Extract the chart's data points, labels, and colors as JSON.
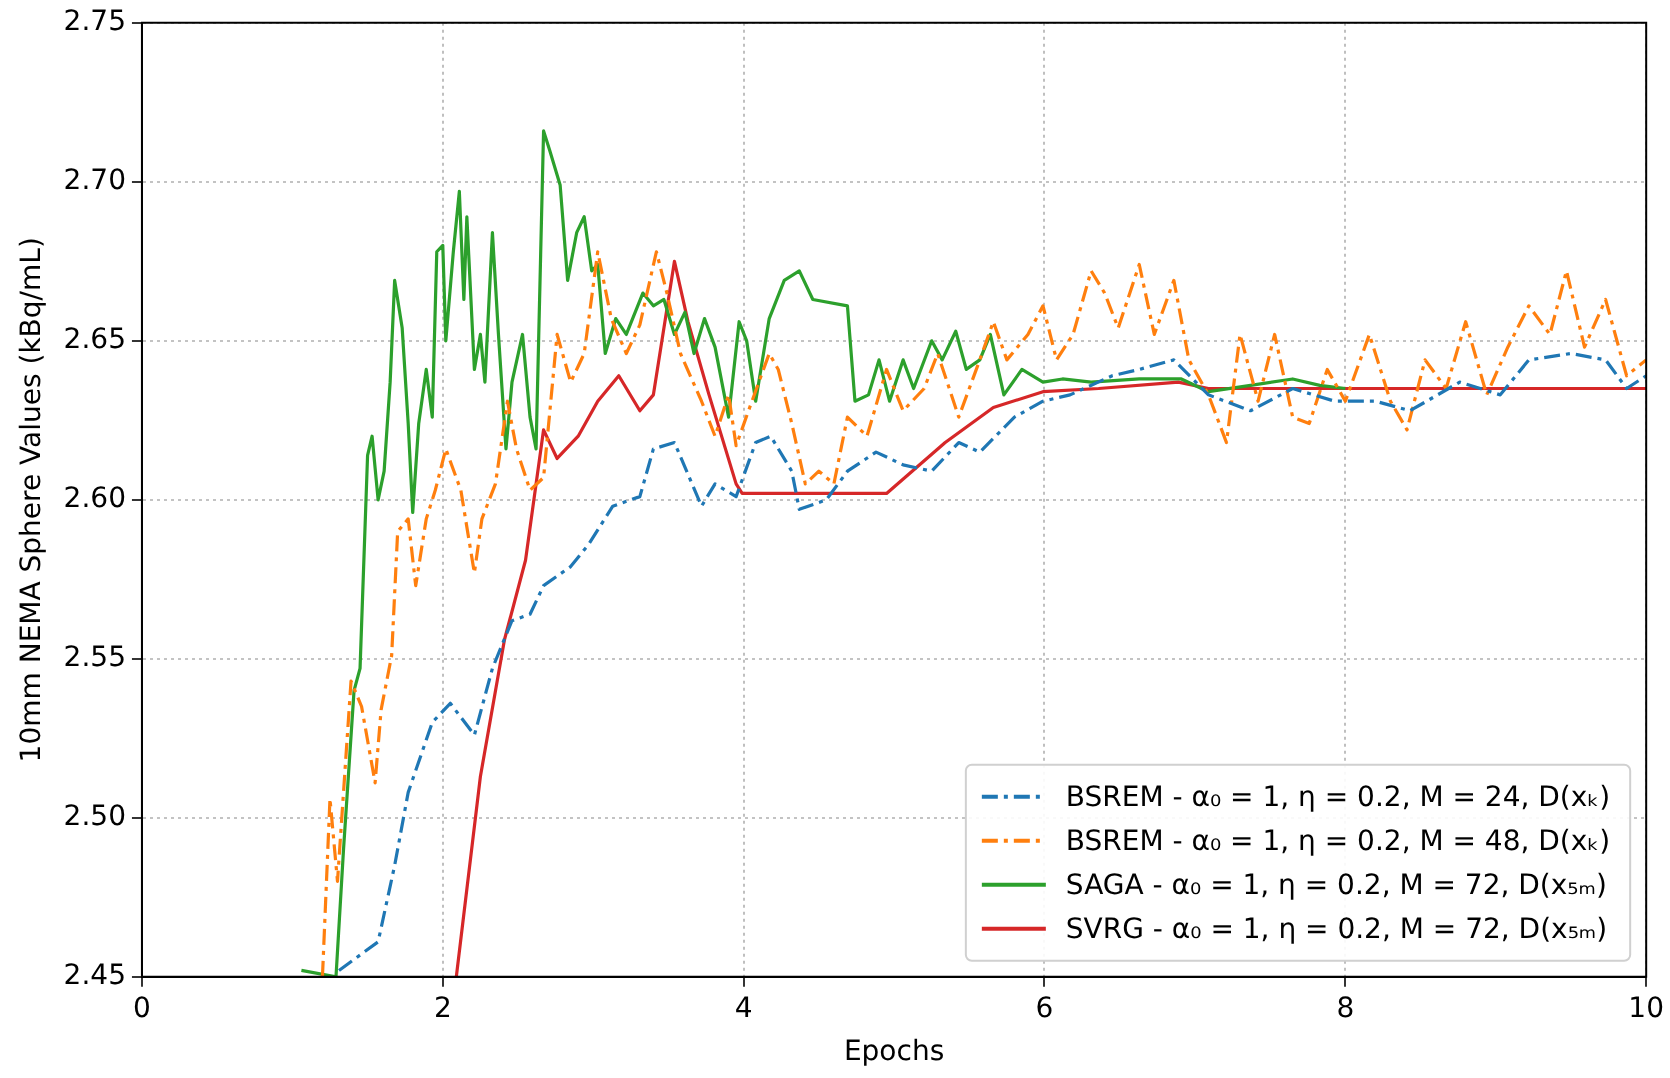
{
  "chart_data": {
    "type": "line",
    "xlabel": "Epochs",
    "ylabel": "10mm NEMA Sphere Values (kBq/mL)",
    "xlim": [
      0,
      10
    ],
    "xticks": [
      0,
      2,
      4,
      6,
      8,
      10
    ],
    "ylim": [
      2.45,
      2.75
    ],
    "yticks": [
      2.45,
      {
        "value": 2.5,
        "label": "2.50"
      },
      2.55,
      {
        "value": 2.6,
        "label": "2.60"
      },
      2.65,
      {
        "value": 2.7,
        "label": "2.70"
      },
      2.75
    ],
    "grid": true,
    "legend": "bottom right",
    "marker": "none",
    "series": [
      {
        "name": "BSREM - α₀ = 1, η = 0.2, M = 24, D(xₖ)",
        "color": "#1f77b4",
        "line_style": "dashed",
        "x": [
          1.31,
          1.57,
          1.68,
          1.77,
          1.93,
          2.05,
          2.21,
          2.33,
          2.46,
          2.58,
          2.67,
          2.85,
          2.97,
          3.13,
          3.31,
          3.4,
          3.54,
          3.72,
          3.81,
          3.95,
          4.08,
          4.18,
          4.32,
          4.37,
          4.55,
          4.69,
          4.88,
          5.06,
          5.25,
          5.43,
          5.57,
          5.8,
          5.99,
          6.17,
          6.45,
          6.63,
          6.86,
          7.09,
          7.37,
          7.65,
          7.93,
          8.2,
          8.43,
          8.76,
          9.03,
          9.22,
          9.5,
          9.73,
          9.87,
          10.0
        ],
        "values": [
          2.452,
          2.461,
          2.485,
          2.508,
          2.53,
          2.536,
          2.526,
          2.547,
          2.562,
          2.564,
          2.573,
          2.579,
          2.586,
          2.598,
          2.601,
          2.616,
          2.618,
          2.598,
          2.605,
          2.601,
          2.618,
          2.62,
          2.609,
          2.597,
          2.6,
          2.609,
          2.615,
          2.611,
          2.609,
          2.618,
          2.615,
          2.626,
          2.631,
          2.633,
          2.639,
          2.641,
          2.644,
          2.633,
          2.628,
          2.635,
          2.631,
          2.631,
          2.628,
          2.637,
          2.633,
          2.644,
          2.646,
          2.644,
          2.635,
          2.639
        ]
      },
      {
        "name": "BSREM - α₀ = 1, η = 0.2, M = 48, D(xₖ)",
        "color": "#ff7f0e",
        "line_style": "dashed",
        "x": [
          1.2,
          1.25,
          1.3,
          1.39,
          1.46,
          1.55,
          1.59,
          1.66,
          1.7,
          1.77,
          1.82,
          1.89,
          1.95,
          2.02,
          2.12,
          2.21,
          2.26,
          2.35,
          2.43,
          2.49,
          2.58,
          2.67,
          2.76,
          2.85,
          2.94,
          3.03,
          3.12,
          3.22,
          3.31,
          3.42,
          3.49,
          3.58,
          3.72,
          3.81,
          3.9,
          3.95,
          4.04,
          4.17,
          4.23,
          4.32,
          4.41,
          4.5,
          4.6,
          4.69,
          4.82,
          4.95,
          5.06,
          5.2,
          5.29,
          5.43,
          5.57,
          5.66,
          5.75,
          5.89,
          5.99,
          6.08,
          6.19,
          6.31,
          6.4,
          6.49,
          6.63,
          6.73,
          6.86,
          6.96,
          7.09,
          7.21,
          7.3,
          7.42,
          7.53,
          7.65,
          7.76,
          7.88,
          8.0,
          8.16,
          8.3,
          8.41,
          8.53,
          8.67,
          8.8,
          8.94,
          9.08,
          9.22,
          9.36,
          9.47,
          9.59,
          9.73,
          9.87,
          10.0
        ],
        "values": [
          2.45,
          2.506,
          2.48,
          2.543,
          2.535,
          2.511,
          2.534,
          2.551,
          2.59,
          2.594,
          2.573,
          2.594,
          2.603,
          2.616,
          2.603,
          2.577,
          2.594,
          2.605,
          2.631,
          2.616,
          2.603,
          2.607,
          2.652,
          2.637,
          2.646,
          2.678,
          2.657,
          2.646,
          2.655,
          2.678,
          2.665,
          2.646,
          2.631,
          2.62,
          2.633,
          2.617,
          2.629,
          2.646,
          2.641,
          2.624,
          2.605,
          2.609,
          2.605,
          2.626,
          2.62,
          2.641,
          2.628,
          2.635,
          2.646,
          2.626,
          2.644,
          2.656,
          2.644,
          2.652,
          2.661,
          2.644,
          2.652,
          2.672,
          2.665,
          2.654,
          2.674,
          2.652,
          2.669,
          2.644,
          2.633,
          2.618,
          2.652,
          2.631,
          2.652,
          2.626,
          2.624,
          2.641,
          2.631,
          2.652,
          2.631,
          2.622,
          2.644,
          2.635,
          2.656,
          2.633,
          2.648,
          2.661,
          2.652,
          2.672,
          2.648,
          2.663,
          2.639,
          2.644
        ]
      },
      {
        "name": "SAGA - α₀ = 1, η = 0.2, M = 72, D(x₅ₘ)",
        "color": "#2ca02c",
        "line_style": "solid",
        "x": [
          1.06,
          1.29,
          1.34,
          1.41,
          1.45,
          1.5,
          1.53,
          1.57,
          1.61,
          1.65,
          1.68,
          1.73,
          1.77,
          1.8,
          1.84,
          1.89,
          1.93,
          1.96,
          2.0,
          2.02,
          2.07,
          2.11,
          2.14,
          2.16,
          2.21,
          2.25,
          2.28,
          2.33,
          2.37,
          2.42,
          2.46,
          2.53,
          2.58,
          2.62,
          2.67,
          2.71,
          2.78,
          2.83,
          2.89,
          2.94,
          2.99,
          3.03,
          3.08,
          3.15,
          3.22,
          3.33,
          3.4,
          3.47,
          3.54,
          3.61,
          3.67,
          3.74,
          3.81,
          3.9,
          3.97,
          4.02,
          4.08,
          4.17,
          4.27,
          4.37,
          4.46,
          4.69,
          4.74,
          4.83,
          4.9,
          4.97,
          5.06,
          5.13,
          5.25,
          5.32,
          5.41,
          5.48,
          5.57,
          5.64,
          5.73,
          5.85,
          5.99,
          6.12,
          6.31,
          6.63,
          6.91,
          7.09,
          7.37,
          7.65,
          7.83,
          8.0
        ],
        "values": [
          2.452,
          2.45,
          2.49,
          2.54,
          2.547,
          2.614,
          2.62,
          2.6,
          2.609,
          2.637,
          2.669,
          2.654,
          2.624,
          2.596,
          2.624,
          2.641,
          2.626,
          2.678,
          2.68,
          2.65,
          2.678,
          2.697,
          2.663,
          2.689,
          2.641,
          2.652,
          2.637,
          2.684,
          2.652,
          2.616,
          2.637,
          2.652,
          2.626,
          2.616,
          2.716,
          2.71,
          2.699,
          2.669,
          2.684,
          2.689,
          2.672,
          2.674,
          2.646,
          2.657,
          2.652,
          2.665,
          2.661,
          2.663,
          2.652,
          2.659,
          2.646,
          2.657,
          2.648,
          2.626,
          2.656,
          2.65,
          2.631,
          2.657,
          2.669,
          2.672,
          2.663,
          2.661,
          2.631,
          2.633,
          2.644,
          2.631,
          2.644,
          2.635,
          2.65,
          2.644,
          2.653,
          2.641,
          2.644,
          2.652,
          2.633,
          2.641,
          2.637,
          2.638,
          2.637,
          2.638,
          2.638,
          2.634,
          2.636,
          2.638,
          2.636,
          2.635
        ]
      },
      {
        "name": "SVRG - α₀ = 1, η = 0.2, M = 72, D(x₅ₘ)",
        "color": "#d62728",
        "line_style": "solid",
        "x": [
          2.09,
          2.25,
          2.41,
          2.55,
          2.67,
          2.76,
          2.9,
          3.03,
          3.17,
          3.31,
          3.4,
          3.54,
          3.63,
          3.77,
          3.95,
          3.99,
          4.95,
          5.34,
          5.66,
          5.99,
          6.36,
          6.89,
          7.09,
          10.0
        ],
        "values": [
          2.45,
          2.513,
          2.556,
          2.581,
          2.622,
          2.613,
          2.62,
          2.631,
          2.639,
          2.628,
          2.633,
          2.675,
          2.656,
          2.633,
          2.605,
          2.602,
          2.602,
          2.618,
          2.629,
          2.634,
          2.635,
          2.637,
          2.635,
          2.635
        ]
      }
    ]
  }
}
